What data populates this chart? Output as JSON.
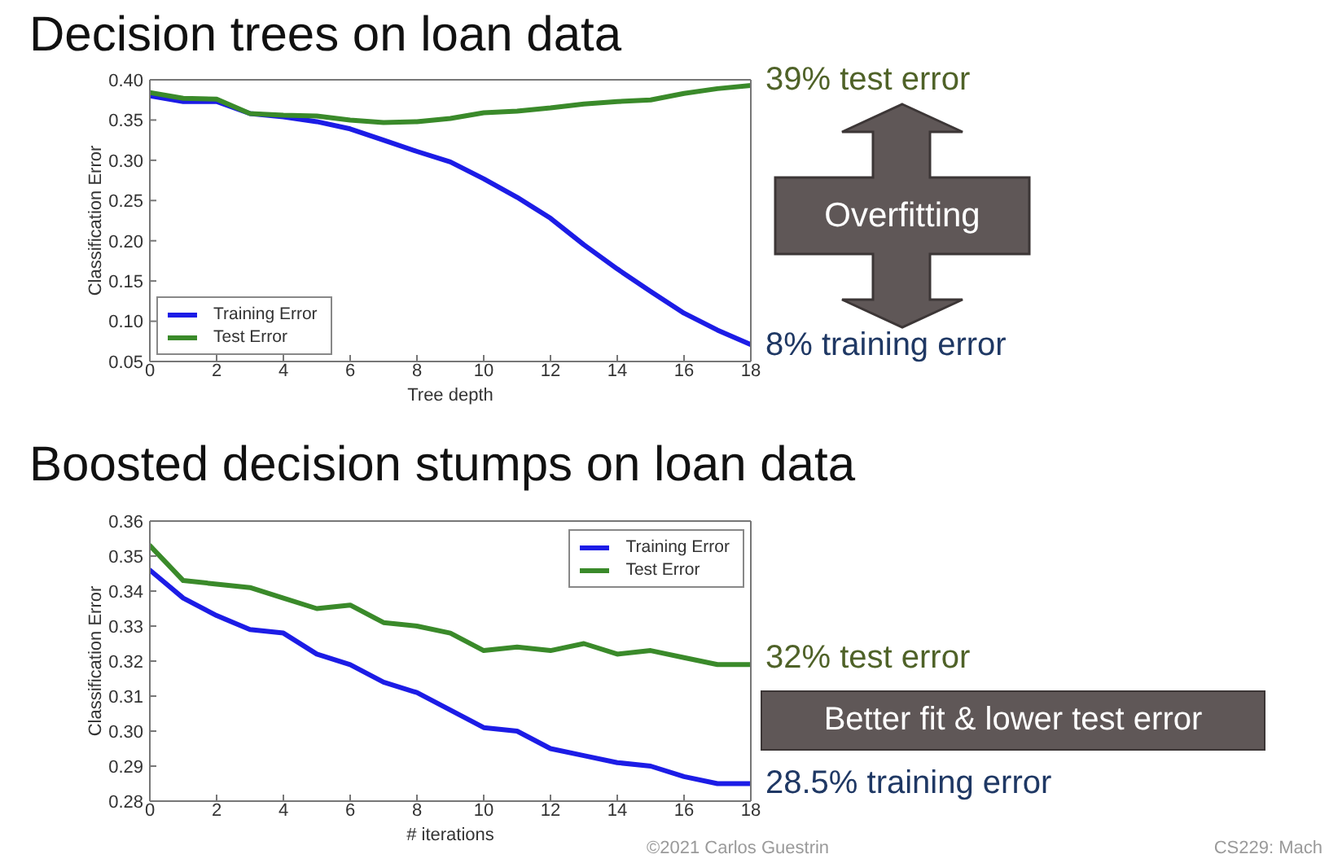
{
  "chart_data": [
    {
      "type": "line",
      "title": "Decision trees on loan data",
      "xlabel": "Tree depth",
      "ylabel": "Classification Error",
      "x": [
        0,
        1,
        2,
        3,
        4,
        5,
        6,
        7,
        8,
        9,
        10,
        11,
        12,
        13,
        14,
        15,
        16,
        17,
        18
      ],
      "series": [
        {
          "name": "Training Error",
          "color": "#1c1ce6",
          "values": [
            0.38,
            0.373,
            0.373,
            0.358,
            0.354,
            0.348,
            0.339,
            0.325,
            0.311,
            0.298,
            0.277,
            0.254,
            0.228,
            0.195,
            0.165,
            0.137,
            0.11,
            0.089,
            0.071
          ]
        },
        {
          "name": "Test Error",
          "color": "#3a8a2a",
          "values": [
            0.384,
            0.377,
            0.376,
            0.358,
            0.356,
            0.355,
            0.35,
            0.347,
            0.348,
            0.352,
            0.359,
            0.361,
            0.365,
            0.37,
            0.373,
            0.375,
            0.383,
            0.389,
            0.393
          ]
        }
      ],
      "xlim": [
        0,
        18
      ],
      "xticks": [
        0,
        2,
        4,
        6,
        8,
        10,
        12,
        14,
        16,
        18
      ],
      "ylim": [
        0.05,
        0.4
      ],
      "yticks": [
        0.05,
        {
          "value": 0.1,
          "label": "0.10"
        },
        0.15,
        {
          "value": 0.2,
          "label": "0.20"
        },
        0.25,
        {
          "value": 0.3,
          "label": "0.30"
        },
        0.35,
        {
          "value": 0.4,
          "label": "0.40"
        }
      ],
      "legend": "bottom left",
      "annotations": [
        "39% test error",
        "Overfitting",
        "8% training error"
      ]
    },
    {
      "type": "line",
      "title": "Boosted decision stumps on loan data",
      "xlabel": "# iterations",
      "ylabel": "Classification Error",
      "x": [
        0,
        1,
        2,
        3,
        4,
        5,
        6,
        7,
        8,
        9,
        10,
        11,
        12,
        13,
        14,
        15,
        16,
        17,
        18
      ],
      "series": [
        {
          "name": "Training Error",
          "color": "#1c1ce6",
          "values": [
            0.346,
            0.338,
            0.333,
            0.329,
            0.328,
            0.322,
            0.319,
            0.314,
            0.311,
            0.306,
            0.301,
            0.3,
            0.295,
            0.293,
            0.291,
            0.29,
            0.287,
            0.285,
            0.285
          ]
        },
        {
          "name": "Test Error",
          "color": "#3a8a2a",
          "values": [
            0.353,
            0.343,
            0.342,
            0.341,
            0.338,
            0.335,
            0.336,
            0.331,
            0.33,
            0.328,
            0.323,
            0.324,
            0.323,
            0.325,
            0.322,
            0.323,
            0.321,
            0.319,
            0.319
          ]
        }
      ],
      "xlim": [
        0,
        18
      ],
      "xticks": [
        0,
        2,
        4,
        6,
        8,
        10,
        12,
        14,
        16,
        18
      ],
      "ylim": [
        0.28,
        0.36
      ],
      "yticks": [
        0.28,
        0.29,
        {
          "value": 0.3,
          "label": "0.30"
        },
        0.31,
        0.32,
        0.33,
        0.34,
        0.35,
        0.36
      ],
      "legend": "top right",
      "annotations": [
        "32% test error",
        "Better fit & lower test error",
        "28.5% training error",
        "©2021 Carlos Guestrin",
        "CS229: Mach"
      ]
    }
  ]
}
